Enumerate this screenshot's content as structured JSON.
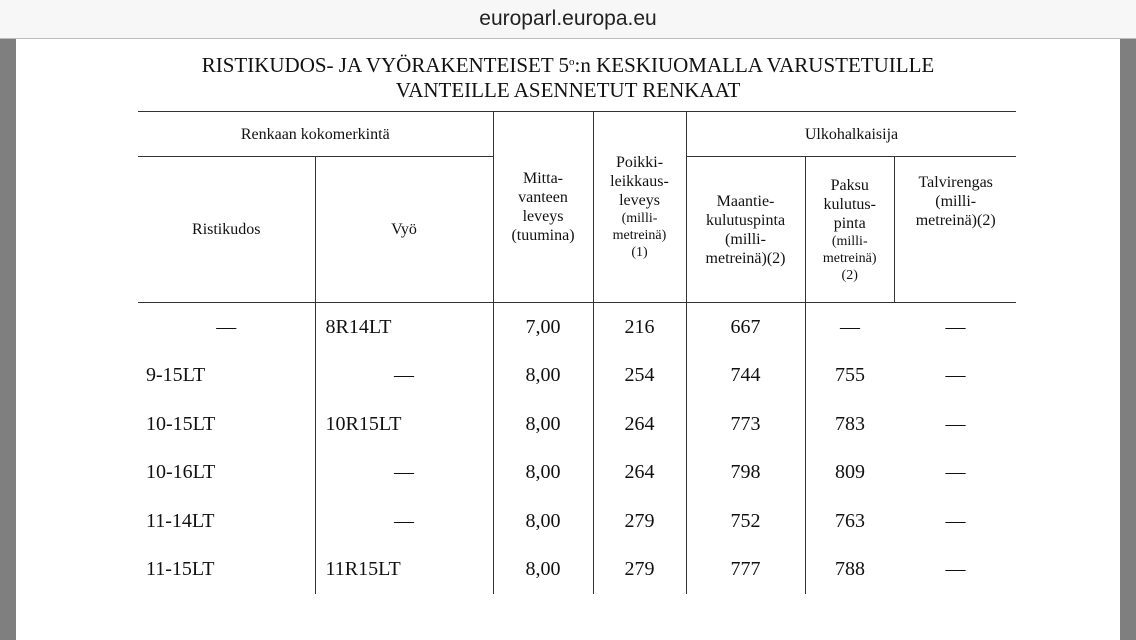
{
  "browser": {
    "url": "europarl.europa.eu"
  },
  "document": {
    "title_line1_pre": "RISTIKUDOS- JA VYÖRAKENTEISET 5",
    "title_sup": "o",
    "title_line1_post": ":n KESKIUOMALLA VARUSTETUILLE",
    "title_line2": "VANTEILLE ASENNETUT RENKAAT",
    "headers": {
      "group_marking": "Renkaan kokomerkintä",
      "ristikudos": "Ristikudos",
      "vyo": "Vyö",
      "rim_width": "Mitta-vanteen leveys (tuumina)",
      "section_width": "Poikki-leikkaus-leveys",
      "section_width_unit": "(milli-metreinä)",
      "section_width_note": "(1)",
      "group_outer": "Ulkohalkaisija",
      "road": "Maantie-kulutuspinta (milli-metreinä)(2)",
      "thick": "Paksu kulutus-pinta",
      "thick_unit": "(milli-metreinä)",
      "thick_note": "(2)",
      "winter": "Talvirengas (milli-metreinä)(2)"
    },
    "rows": [
      [
        "—",
        "8R14LT",
        "7,00",
        "216",
        "667",
        "—",
        "—"
      ],
      [
        "9-15LT",
        "—",
        "8,00",
        "254",
        "744",
        "755",
        "—"
      ],
      [
        "10-15LT",
        "10R15LT",
        "8,00",
        "264",
        "773",
        "783",
        "—"
      ],
      [
        "10-16LT",
        "—",
        "8,00",
        "264",
        "798",
        "809",
        "—"
      ],
      [
        "11-14LT",
        "—",
        "8,00",
        "279",
        "752",
        "763",
        "—"
      ],
      [
        "11-15LT",
        "11R15LT",
        "8,00",
        "279",
        "777",
        "788",
        "—"
      ]
    ]
  }
}
